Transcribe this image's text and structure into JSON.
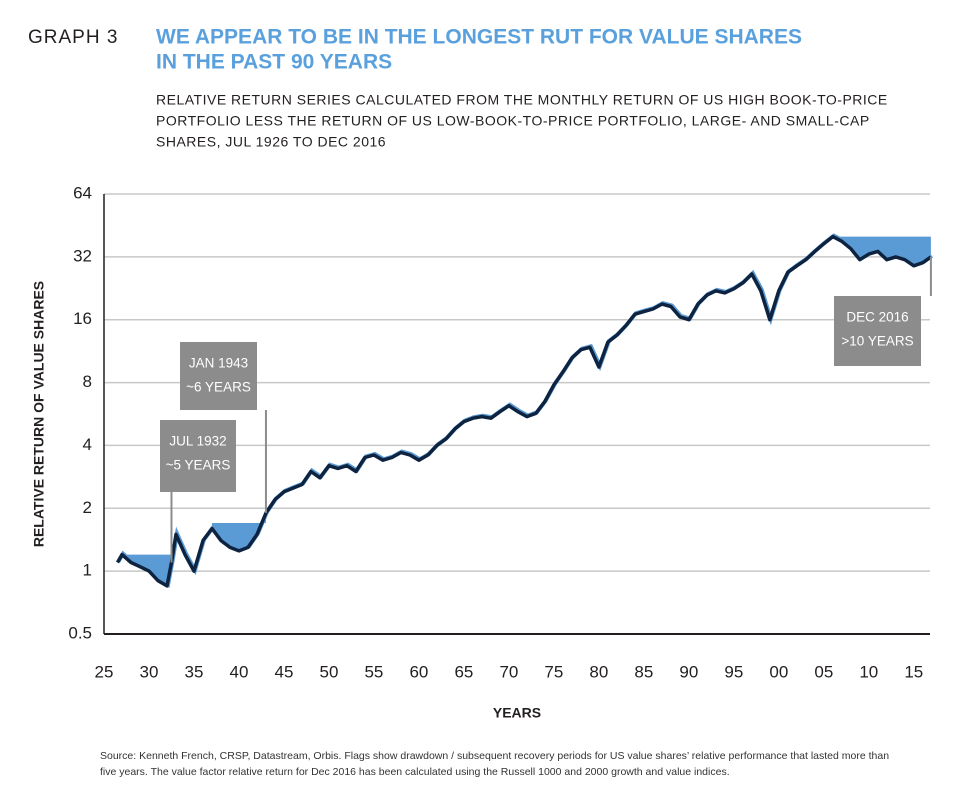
{
  "chart_data": {
    "type": "line",
    "header": "GRAPH 3",
    "title": [
      "WE APPEAR TO BE IN THE LONGEST RUT FOR VALUE SHARES",
      "IN THE PAST 90 YEARS"
    ],
    "subtitle": [
      "RELATIVE RETURN SERIES CALCULATED FROM THE MONTHLY RETURN OF US HIGH BOOK-TO-PRICE",
      "PORTFOLIO LESS THE RETURN OF US LOW-BOOK-TO-PRICE PORTFOLIO, LARGE- AND SMALL-CAP",
      "SHARES, JUL 1926 TO DEC 2016"
    ],
    "ylabel": "RELATIVE RETURN OF VALUE SHARES",
    "xlabel": "YEARS",
    "source": [
      "Source: Kenneth French, CRSP, Datastream, Orbis. Flags show drawdown / subsequent recovery periods for US value shares’ relative performance that lasted more than",
      "five years. The value factor relative return for Dec 2016 has been calculated using the Russell 1000 and 2000 growth and value indices."
    ],
    "log_scale": true,
    "grid": true,
    "color": "#0d2340",
    "shade_color": "#5b9bd5",
    "x": [
      1926.5,
      1927,
      1928,
      1929,
      1930,
      1931,
      1932,
      1932.5,
      1933,
      1934,
      1935,
      1936,
      1937,
      1938,
      1939,
      1940,
      1941,
      1942,
      1943,
      1944,
      1945,
      1946,
      1947,
      1948,
      1949,
      1950,
      1951,
      1952,
      1953,
      1954,
      1955,
      1956,
      1957,
      1958,
      1959,
      1960,
      1961,
      1962,
      1963,
      1964,
      1965,
      1966,
      1967,
      1968,
      1969,
      1970,
      1971,
      1972,
      1973,
      1974,
      1975,
      1976,
      1977,
      1978,
      1979,
      1980,
      1981,
      1982,
      1983,
      1984,
      1985,
      1986,
      1987,
      1988,
      1989,
      1990,
      1991,
      1992,
      1993,
      1994,
      1995,
      1996,
      1997,
      1998,
      1999,
      2000,
      2001,
      2002,
      2003,
      2004,
      2005,
      2006,
      2007,
      2008,
      2009,
      2010,
      2011,
      2012,
      2013,
      2014,
      2015,
      2016,
      2016.9
    ],
    "values": [
      1.1,
      1.2,
      1.1,
      1.05,
      1.0,
      0.9,
      0.85,
      1.1,
      1.5,
      1.2,
      1.0,
      1.4,
      1.6,
      1.4,
      1.3,
      1.25,
      1.3,
      1.5,
      1.9,
      2.2,
      2.4,
      2.5,
      2.6,
      3.0,
      2.8,
      3.2,
      3.1,
      3.2,
      3.0,
      3.5,
      3.6,
      3.4,
      3.5,
      3.7,
      3.6,
      3.4,
      3.6,
      4.0,
      4.3,
      4.8,
      5.2,
      5.4,
      5.5,
      5.4,
      5.8,
      6.2,
      5.8,
      5.5,
      5.7,
      6.5,
      7.8,
      9.0,
      10.5,
      11.5,
      11.8,
      9.5,
      12.5,
      13.5,
      15.0,
      17.0,
      17.5,
      18.0,
      19.0,
      18.5,
      16.5,
      16.0,
      19.0,
      21.0,
      22.0,
      21.5,
      22.5,
      24.0,
      26.5,
      22.0,
      16.0,
      22.0,
      27.0,
      29.0,
      31.0,
      34.0,
      37.0,
      40.0,
      38.0,
      35.0,
      31.0,
      33.0,
      34.0,
      31.0,
      32.0,
      31.0,
      29.0,
      30.0,
      32.0
    ],
    "drawdowns": [
      {
        "start": 1927,
        "end": 1932.5,
        "peak": 1.2
      },
      {
        "start": 1937,
        "end": 1943,
        "peak": 1.7
      },
      {
        "start": 2006,
        "end": 2016.9,
        "peak": 40
      }
    ],
    "annotations": [
      {
        "lines": [
          "JUL 1932",
          "~5 YEARS"
        ],
        "x": 1932.5
      },
      {
        "lines": [
          "JAN 1943",
          "~6 YEARS"
        ],
        "x": 1943
      },
      {
        "lines": [
          "DEC 2016",
          ">10 YEARS"
        ],
        "x": 2016.9
      }
    ],
    "xlim": [
      1925,
      2016.8
    ],
    "xticks": [
      {
        "value": 1925,
        "label": "25"
      },
      {
        "value": 1930,
        "label": "30"
      },
      {
        "value": 1935,
        "label": "35"
      },
      {
        "value": 1940,
        "label": "40"
      },
      {
        "value": 1945,
        "label": "45"
      },
      {
        "value": 1950,
        "label": "50"
      },
      {
        "value": 1955,
        "label": "55"
      },
      {
        "value": 1960,
        "label": "60"
      },
      {
        "value": 1965,
        "label": "65"
      },
      {
        "value": 1970,
        "label": "70"
      },
      {
        "value": 1975,
        "label": "75"
      },
      {
        "value": 1980,
        "label": "80"
      },
      {
        "value": 1985,
        "label": "85"
      },
      {
        "value": 1990,
        "label": "90"
      },
      {
        "value": 1995,
        "label": "95"
      },
      {
        "value": 2000,
        "label": "00"
      },
      {
        "value": 2005,
        "label": "05"
      },
      {
        "value": 2010,
        "label": "10"
      },
      {
        "value": 2015,
        "label": "15"
      }
    ],
    "ylim": [
      0.5,
      64
    ],
    "yticks": [
      0.5,
      1,
      2,
      4,
      8,
      16,
      32,
      64
    ]
  }
}
